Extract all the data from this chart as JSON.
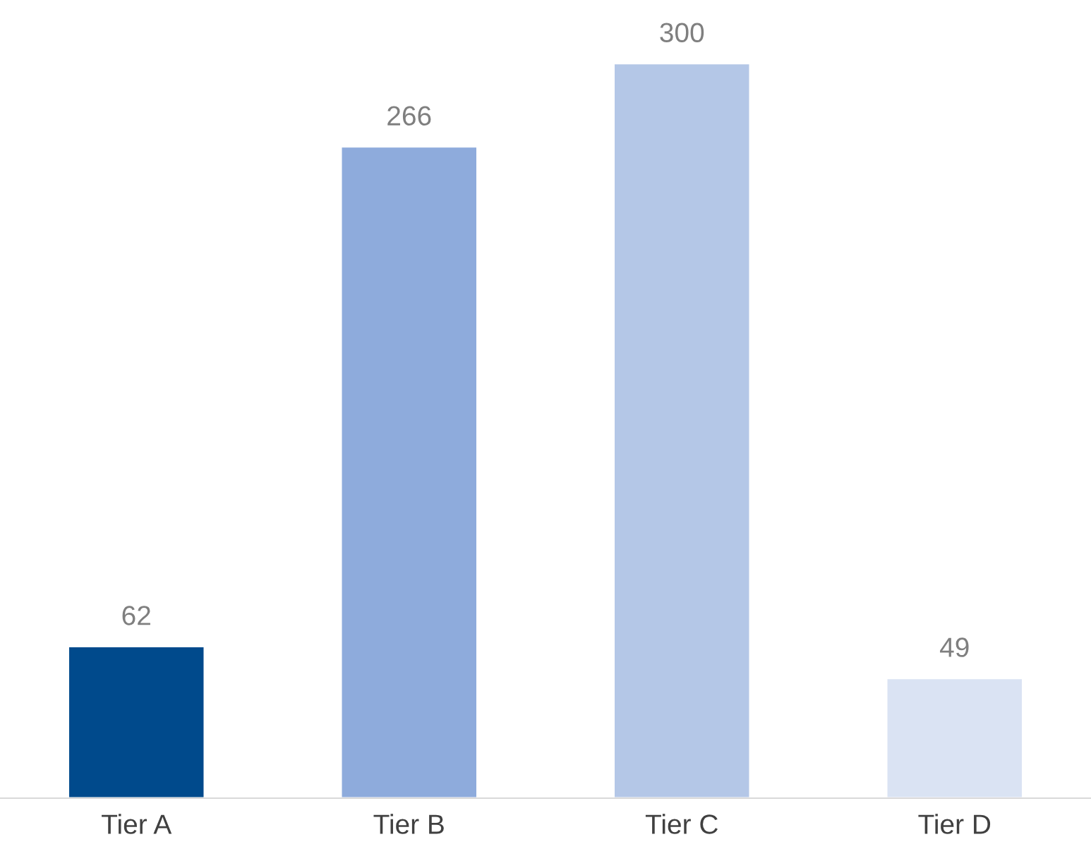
{
  "chart_data": {
    "type": "bar",
    "categories": [
      "Tier A",
      "Tier B",
      "Tier C",
      "Tier D"
    ],
    "values": [
      62,
      266,
      300,
      49
    ],
    "colors": [
      "#004a8c",
      "#8eabdc",
      "#b4c7e7",
      "#dae3f3"
    ],
    "data_labels": true,
    "grid": false,
    "legend": false
  }
}
